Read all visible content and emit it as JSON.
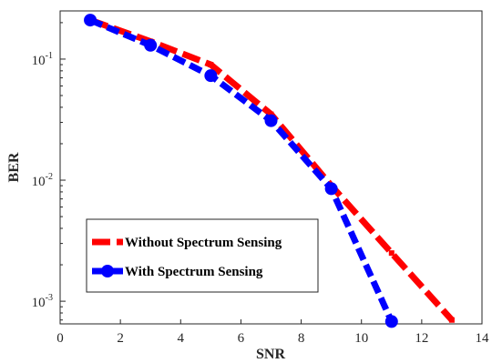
{
  "chart_data": {
    "type": "line",
    "xlabel": "SNR",
    "ylabel": "BER",
    "xlim": [
      0,
      14
    ],
    "ylim": [
      0.00065,
      0.25
    ],
    "yscale": "log",
    "grid": false,
    "legend_position": "bottom-left",
    "x_ticks": [
      0,
      2,
      4,
      6,
      8,
      10,
      12,
      14
    ],
    "x_tick_labels": [
      "0",
      "2",
      "4",
      "6",
      "8",
      "10",
      "12",
      "14"
    ],
    "y_ticks": [
      0.001,
      0.01,
      0.1
    ],
    "y_tick_labels": [
      {
        "base": "10",
        "exp": "-3"
      },
      {
        "base": "10",
        "exp": "-2"
      },
      {
        "base": "10",
        "exp": "-1"
      }
    ],
    "series": [
      {
        "name": "Without Spectrum Sensing",
        "color": "#ff0000",
        "style": "dashed",
        "marker": "square",
        "x": [
          1,
          3,
          5,
          7,
          9,
          11,
          13
        ],
        "y": [
          0.21,
          0.14,
          0.09,
          0.035,
          0.009,
          0.0025,
          0.0007
        ]
      },
      {
        "name": "With Spectrum Sensing",
        "color": "#0000ff",
        "style": "dashed",
        "marker": "circle",
        "x": [
          1,
          3,
          5,
          7,
          9,
          11
        ],
        "y": [
          0.21,
          0.13,
          0.073,
          0.031,
          0.0085,
          0.00068
        ]
      }
    ]
  }
}
